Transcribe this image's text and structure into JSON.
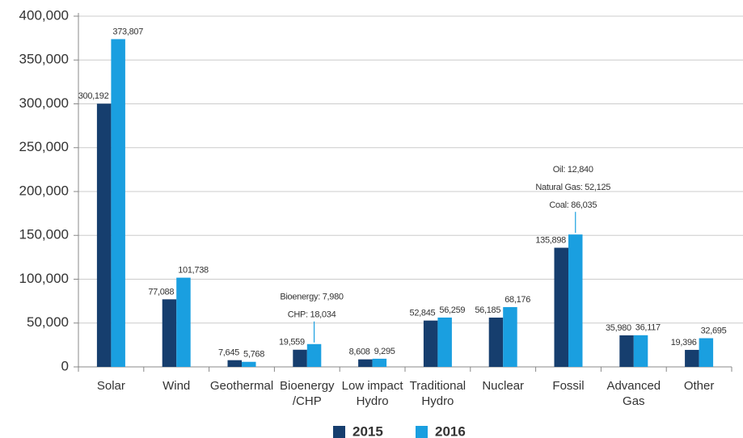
{
  "chart_data": {
    "type": "bar",
    "categories": [
      "Solar",
      "Wind",
      "Geothermal",
      "Bioenergy\n/CHP",
      "Low impact\nHydro",
      "Traditional\nHydro",
      "Nuclear",
      "Fossil",
      "Advanced\nGas",
      "Other"
    ],
    "series": [
      {
        "name": "2015",
        "color": "#163e6e",
        "values": [
          300192,
          77088,
          7645,
          19559,
          8608,
          52845,
          56185,
          135898,
          35980,
          19396
        ],
        "value_labels": [
          "300,192",
          "77,088",
          "7,645",
          "19,559",
          "8,608",
          "52,845",
          "56,185",
          "135,898",
          "35,980",
          "19,396"
        ]
      },
      {
        "name": "2016",
        "color": "#1a9fe0",
        "values": [
          373807,
          101738,
          5768,
          26014,
          9295,
          56259,
          68176,
          151000,
          36117,
          32695
        ],
        "value_labels": [
          "373,807",
          "101,738",
          "5,768",
          null,
          "9,295",
          "56,259",
          "68,176",
          null,
          "36,117",
          "32,695"
        ]
      }
    ],
    "annotations": [
      [
        "Bioenergy: 7,980",
        "CHP: 18,034"
      ],
      [
        "Oil: 12,840",
        "Natural Gas: 52,125",
        "Coal: 86,035"
      ]
    ],
    "ylim": [
      0,
      400000
    ],
    "yticks": [
      0,
      {
        "value": 50000,
        "label": "50,000"
      },
      {
        "value": 100000,
        "label": "100,000"
      },
      {
        "value": 150000,
        "label": "150,000"
      },
      {
        "value": 200000,
        "label": "200,000"
      },
      {
        "value": 250000,
        "label": "250,000"
      },
      {
        "value": 300000,
        "label": "300,000"
      },
      {
        "value": 350000,
        "label": "350,000"
      },
      {
        "value": 400000,
        "label": "400,000"
      }
    ],
    "grid": true,
    "legend": "bottom"
  }
}
